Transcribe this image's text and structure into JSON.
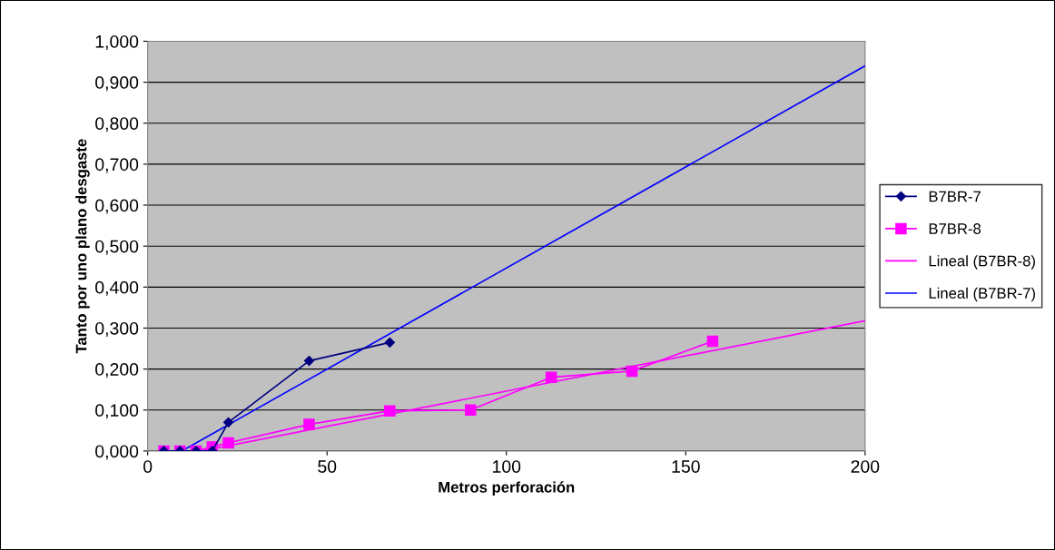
{
  "chart_data": {
    "type": "line",
    "xlabel": "Metros perforación",
    "ylabel": "Tanto por uno plano desgaste",
    "xlim": [
      0,
      200
    ],
    "xticks": [
      0,
      50,
      100,
      150,
      200
    ],
    "ylim": [
      0,
      1
    ],
    "yticks": [
      {
        "value": 0,
        "label": "0,000"
      },
      {
        "value": 0.1,
        "label": "0,100"
      },
      {
        "value": 0.2,
        "label": "0,200"
      },
      {
        "value": 0.3,
        "label": "0,300"
      },
      {
        "value": 0.4,
        "label": "0,400"
      },
      {
        "value": 0.5,
        "label": "0,500"
      },
      {
        "value": 0.6,
        "label": "0,600"
      },
      {
        "value": 0.7,
        "label": "0,700"
      },
      {
        "value": 0.8,
        "label": "0,800"
      },
      {
        "value": 0.9,
        "label": "0,900"
      },
      {
        "value": 1,
        "label": "1,000"
      }
    ],
    "grid": "y",
    "legend": "right",
    "series": [
      {
        "name": "B7BR-7",
        "color": "#000080",
        "marker": "diamond",
        "x": [
          4.5,
          9,
          13.5,
          18,
          22.5,
          45,
          67.5
        ],
        "values": [
          0,
          0,
          0,
          0,
          0.07,
          0.22,
          0.265
        ]
      },
      {
        "name": "B7BR-8",
        "color": "#ff00ff",
        "marker": "square",
        "x": [
          4.5,
          9,
          13.5,
          18,
          22.5,
          45,
          67.5,
          90,
          112.5,
          135,
          157.5
        ],
        "values": [
          0,
          0,
          0,
          0.01,
          0.02,
          0.065,
          0.098,
          0.1,
          0.18,
          0.195,
          0.268
        ]
      },
      {
        "name": "Lineal (B7BR-8)",
        "color": "#ff00ff",
        "marker": "none",
        "x": [
          15,
          200
        ],
        "values": [
          0,
          0.318
        ]
      },
      {
        "name": "Lineal (B7BR-7)",
        "color": "#0000ff",
        "marker": "none",
        "x": [
          9.5,
          200
        ],
        "values": [
          0,
          0.94
        ]
      }
    ]
  }
}
